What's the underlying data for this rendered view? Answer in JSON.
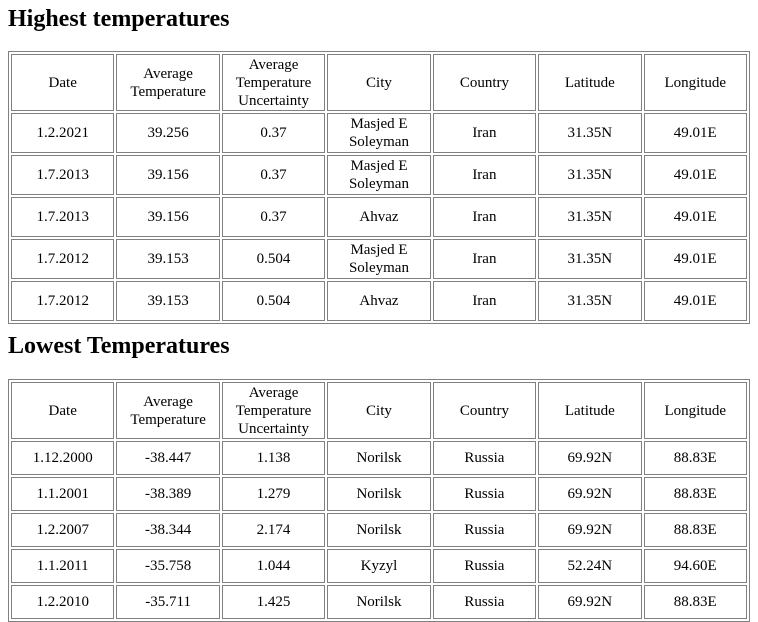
{
  "sections": [
    {
      "title": "Highest temperatures",
      "columns": [
        "Date",
        "Average Temperature",
        "Average Temperature Uncertainty",
        "City",
        "Country",
        "Latitude",
        "Longitude"
      ],
      "rows": [
        [
          "1.2.2021",
          "39.256",
          "0.37",
          "Masjed E Soleyman",
          "Iran",
          "31.35N",
          "49.01E"
        ],
        [
          "1.7.2013",
          "39.156",
          "0.37",
          "Masjed E Soleyman",
          "Iran",
          "31.35N",
          "49.01E"
        ],
        [
          "1.7.2013",
          "39.156",
          "0.37",
          "Ahvaz",
          "Iran",
          "31.35N",
          "49.01E"
        ],
        [
          "1.7.2012",
          "39.153",
          "0.504",
          "Masjed E Soleyman",
          "Iran",
          "31.35N",
          "49.01E"
        ],
        [
          "1.7.2012",
          "39.153",
          "0.504",
          "Ahvaz",
          "Iran",
          "31.35N",
          "49.01E"
        ]
      ]
    },
    {
      "title": "Lowest Temperatures",
      "columns": [
        "Date",
        "Average Temperature",
        "Average Temperature Uncertainty",
        "City",
        "Country",
        "Latitude",
        "Longitude"
      ],
      "rows": [
        [
          "1.12.2000",
          "-38.447",
          "1.138",
          "Norilsk",
          "Russia",
          "69.92N",
          "88.83E"
        ],
        [
          "1.1.2001",
          "-38.389",
          "1.279",
          "Norilsk",
          "Russia",
          "69.92N",
          "88.83E"
        ],
        [
          "1.2.2007",
          "-38.344",
          "2.174",
          "Norilsk",
          "Russia",
          "69.92N",
          "88.83E"
        ],
        [
          "1.1.2011",
          "-35.758",
          "1.044",
          "Kyzyl",
          "Russia",
          "52.24N",
          "94.60E"
        ],
        [
          "1.2.2010",
          "-35.711",
          "1.425",
          "Norilsk",
          "Russia",
          "69.92N",
          "88.83E"
        ]
      ]
    }
  ]
}
